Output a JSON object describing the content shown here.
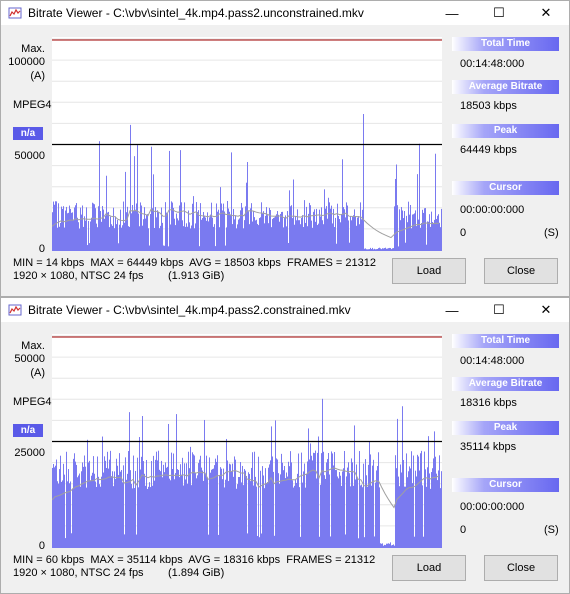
{
  "windows": [
    {
      "title": "Bitrate Viewer - C:\\vbv\\sintel_4k.mp4.pass2.unconstrained.mkv",
      "max_label": "Max.",
      "max_value": "100000",
      "mode": "(A)",
      "codec": "MPEG4",
      "badge": "n/a",
      "mid_value": "50000",
      "zero_value": "0",
      "stats_line1": "MIN = 14 kbps  MAX = 64449 kbps  AVG = 18503 kbps  FRAMES = 21312",
      "stats_line2": "1920 × 1080, NTSC 24 fps        (1.913 GiB)",
      "total_time_header": "Total Time",
      "total_time": "00:14:48:000",
      "avg_bitrate_header": "Average Bitrate",
      "avg_bitrate": "18503 kbps",
      "peak_header": "Peak",
      "peak": "64449 kbps",
      "cursor_header": "Cursor",
      "cursor_time": "00:00:00:000",
      "cursor_value": "0",
      "cursor_unit": "(S)",
      "load_label": "Load",
      "close_label": "Close",
      "chart_data": {
        "type": "area",
        "ylim": [
          0,
          100000
        ],
        "max_line": 100000,
        "mid_line": 50000,
        "avg": 18503,
        "peak": 64449,
        "constrained": false
      }
    },
    {
      "title": "Bitrate Viewer - C:\\vbv\\sintel_4k.mp4.pass2.constrained.mkv",
      "max_label": "Max.",
      "max_value": "50000",
      "mode": "(A)",
      "codec": "MPEG4",
      "badge": "n/a",
      "mid_value": "25000",
      "zero_value": "0",
      "stats_line1": "MIN = 60 kbps  MAX = 35114 kbps  AVG = 18316 kbps  FRAMES = 21312",
      "stats_line2": "1920 × 1080, NTSC 24 fps        (1.894 GiB)",
      "total_time_header": "Total Time",
      "total_time": "00:14:48:000",
      "avg_bitrate_header": "Average Bitrate",
      "avg_bitrate": "18316 kbps",
      "peak_header": "Peak",
      "peak": "35114 kbps",
      "cursor_header": "Cursor",
      "cursor_time": "00:00:00:000",
      "cursor_value": "0",
      "cursor_unit": "(S)",
      "load_label": "Load",
      "close_label": "Close",
      "chart_data": {
        "type": "area",
        "ylim": [
          0,
          50000
        ],
        "max_line": 50000,
        "mid_line": 25000,
        "avg": 18316,
        "peak": 35114,
        "constrained": true
      }
    }
  ],
  "colors": {
    "bar_fill": "#7a7af0",
    "bar_top": "#b07ad0",
    "max_line": "#b03030",
    "mid_line": "#000000",
    "avg_line": "#a0a0a0"
  }
}
